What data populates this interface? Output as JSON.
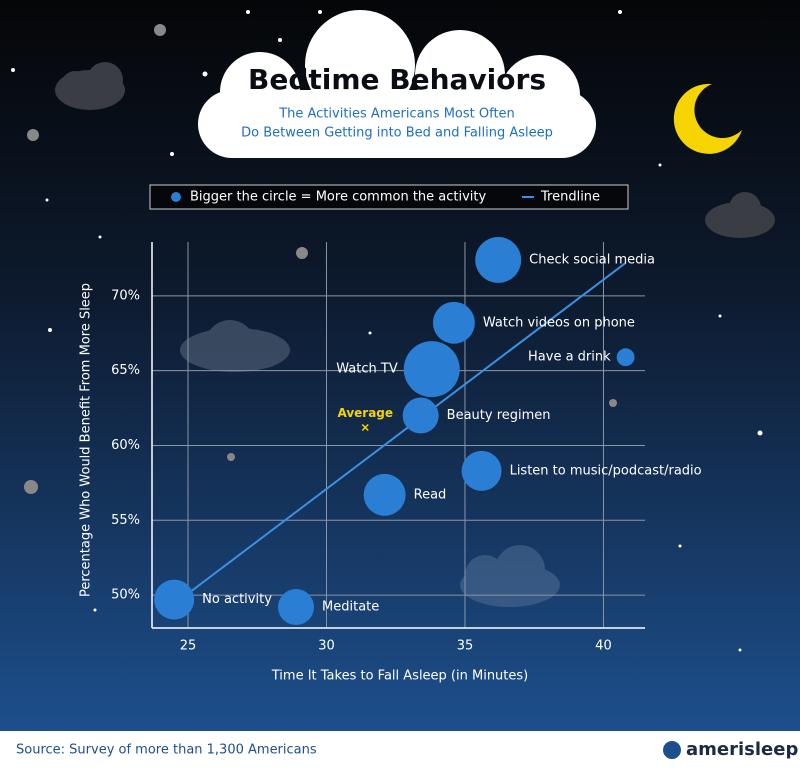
{
  "chart_data": {
    "type": "bubble",
    "title": "Bedtime Behaviors",
    "subtitle": [
      "The Activities Americans Most Often",
      "Do Between Getting into Bed and Falling Asleep"
    ],
    "legend": [
      "Bigger the circle = More common the activity",
      "Trendline"
    ],
    "x_label": "Time It Takes to Fall Asleep (in Minutes)",
    "y_label": "Percentage Who Would Benefit From More Sleep",
    "categories": [
      "Check social media",
      "Watch videos on phone",
      "Have a drink",
      "Watch TV",
      "Beauty regimen",
      "Listen to music/podcast/radio",
      "Read",
      "No activity",
      "Meditate"
    ],
    "x": [
      36.2,
      34.6,
      40.8,
      33.8,
      33.4,
      35.6,
      32.1,
      24.5,
      28.9
    ],
    "values": [
      72.4,
      68.2,
      65.9,
      65.1,
      62.0,
      58.3,
      56.7,
      49.7,
      49.2
    ],
    "sizes": [
      132,
      110,
      20,
      196,
      81,
      100,
      110,
      100,
      81
    ],
    "color": "#2a7fd4",
    "trendline": {
      "x": [
        24.5,
        40.8
      ],
      "y": [
        49.4,
        72.2
      ],
      "color": "#3d8fe0"
    },
    "average": {
      "label": "Average",
      "x": 31.4,
      "y": 61.2,
      "color": "#f5d400"
    },
    "xlim": [
      23.7,
      41.5
    ],
    "ylim": [
      47.8,
      73.6
    ],
    "xticks": [
      25,
      30,
      35,
      40
    ],
    "yticks": [
      {
        "value": 50,
        "label": "50%"
      },
      {
        "value": 55,
        "label": "55%"
      },
      {
        "value": 60,
        "label": "60%"
      },
      {
        "value": 65,
        "label": "65%"
      },
      {
        "value": 70,
        "label": "70%"
      }
    ],
    "grid": true
  },
  "footer": {
    "source": "Source: Survey of more than 1,300 Americans",
    "brand": "amerisleep"
  }
}
